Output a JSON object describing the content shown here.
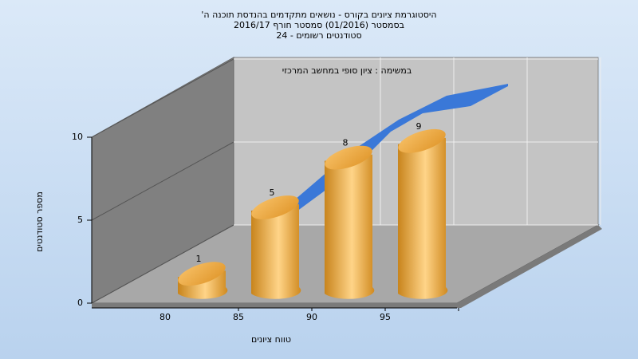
{
  "chart_data": {
    "type": "bar",
    "title": [
      "היסטוגרמת ציונים בקורס - נושאים מתקדמים בהנדסת תוכנה ה'",
      "בסמסטר  (01/2016)  סמסטר חורף 2016/17",
      "סטודנטים רשומים - 24"
    ],
    "annotation": "במשימה : ציון סופי במחשב המרכזי",
    "x_label": "טווח ציונים",
    "y_label": "מספר סטודנטים",
    "categories": [
      "80",
      "85",
      "90",
      "95"
    ],
    "values": [
      1,
      5,
      8,
      9
    ],
    "color": "#f0a830",
    "ylim": [
      0,
      10
    ],
    "yticks": [
      0,
      5,
      10
    ],
    "grid": true
  }
}
